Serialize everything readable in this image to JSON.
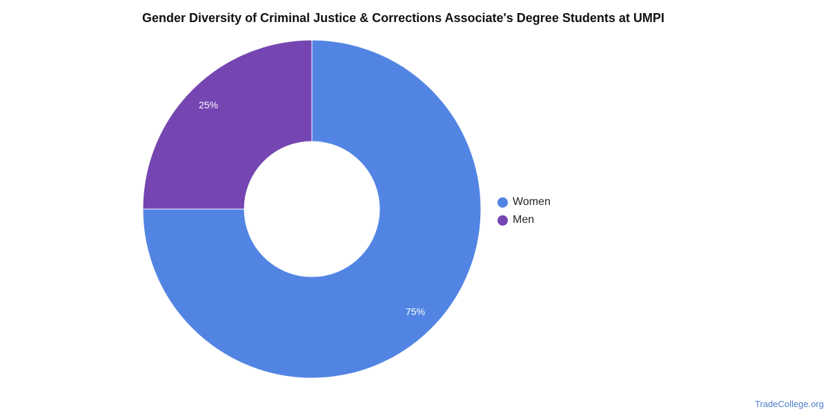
{
  "title": "Gender Diversity of Criminal Justice & Corrections Associate's Degree Students at UMPI",
  "watermark": "TradeCollege.org",
  "chart_data": {
    "type": "pie",
    "donut": true,
    "title": "Gender Diversity of Criminal Justice & Corrections Associate's Degree Students at UMPI",
    "categories": [
      "Women",
      "Men"
    ],
    "values": [
      75,
      25
    ],
    "labels": [
      "75%",
      "25%"
    ],
    "colors": [
      "#5285e3",
      "#7546b1"
    ],
    "legend": [
      "Women",
      "Men"
    ],
    "legend_position": "right"
  }
}
